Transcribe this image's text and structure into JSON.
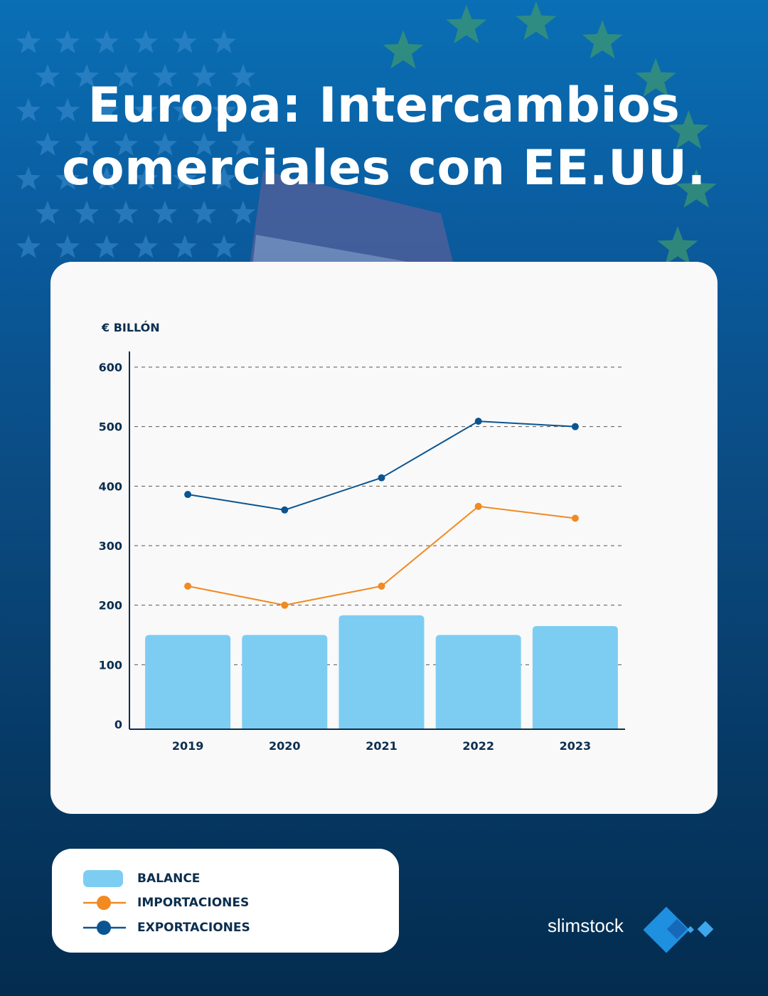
{
  "title_line1": "Europa: Intercambios",
  "title_line2": "comerciales con EE.UU.",
  "colors": {
    "balance": "#7dcdf2",
    "imports": "#f18a21",
    "exports": "#0a5591",
    "axis": "#0b2e4f"
  },
  "chart_data": {
    "type": "bar+line",
    "ylabel": "€ BILLÓN",
    "ylim": [
      0,
      600
    ],
    "yticks": [
      0,
      100,
      200,
      300,
      400,
      500,
      600
    ],
    "grid": "dashed horizontal",
    "categories": [
      "2019",
      "2020",
      "2021",
      "2022",
      "2023"
    ],
    "series": [
      {
        "name": "BALANCE",
        "type": "bar",
        "values": [
          150,
          150,
          183,
          150,
          165
        ]
      },
      {
        "name": "IMPORTACIONES",
        "type": "line",
        "values": [
          232,
          200,
          232,
          366,
          346
        ]
      },
      {
        "name": "EXPORTACIONES",
        "type": "line",
        "values": [
          386,
          360,
          414,
          509,
          500
        ]
      }
    ],
    "legend_placement": "bottom-left"
  },
  "legend": [
    "BALANCE",
    "IMPORTACIONES",
    "EXPORTACIONES"
  ],
  "logo": {
    "text": "slimstock",
    "icon": "diamond-squares-icon"
  }
}
